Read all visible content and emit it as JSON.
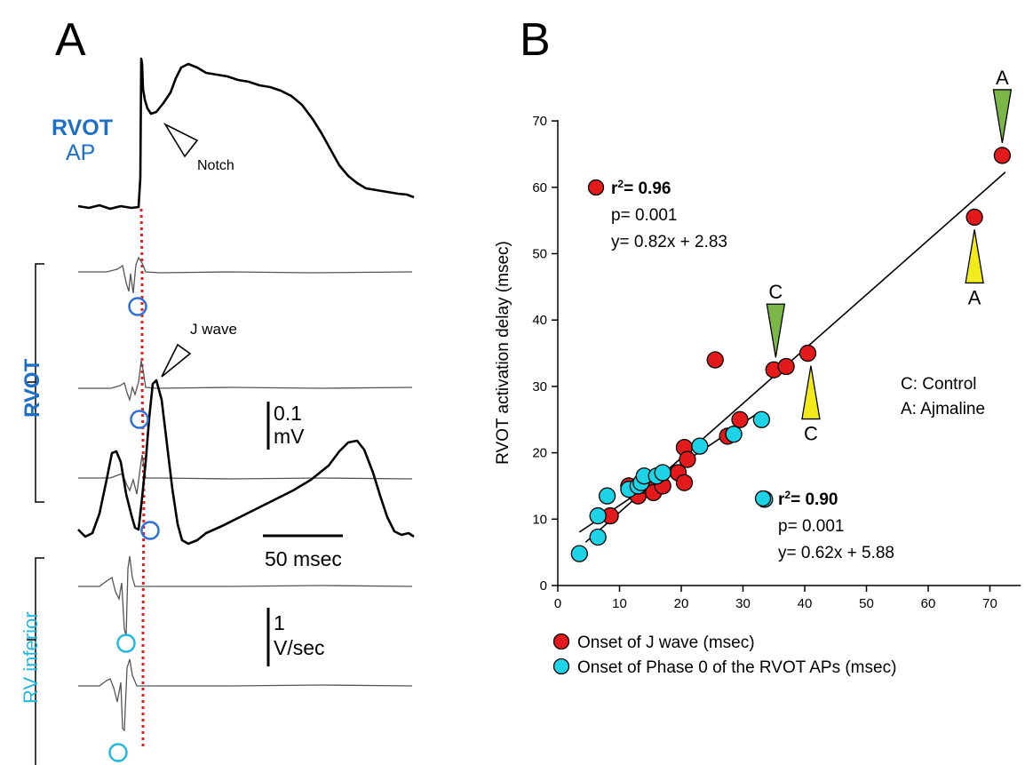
{
  "panel_a": {
    "letter": "A",
    "rvot_ap_label_1": "RVOT",
    "rvot_ap_label_2": "AP",
    "notch_label": "Notch",
    "j_wave_label": "J wave",
    "rvot_label": "RVOT",
    "rv_inferior_label": "RV inferior",
    "scale_mv_1": "0.1",
    "scale_mv_2": "mV",
    "scale_time": "50 msec",
    "scale_vsec_1": "1",
    "scale_vsec_2": "V/sec",
    "colors": {
      "rvot": "#1f6fc6",
      "rv_inferior": "#22b8e0",
      "marker_line": "#e02020"
    }
  },
  "chart_data": {
    "type": "scatter",
    "panel_letter": "B",
    "title": "",
    "xlabel": "",
    "ylabel": "RVOT activation delay (msec)",
    "xlim": [
      0,
      75
    ],
    "ylim": [
      0,
      70
    ],
    "xticks": [
      0,
      10,
      20,
      30,
      40,
      50,
      60,
      70
    ],
    "yticks": [
      0,
      10,
      20,
      30,
      40,
      50,
      60,
      70
    ],
    "grid": false,
    "legend_position": "bottom",
    "series": [
      {
        "name": "Onset of J wave (msec)",
        "color": "#e31a1c",
        "fit": {
          "slope": 0.82,
          "intercept": 2.83,
          "x_range": [
            4.5,
            72.5
          ]
        },
        "stats": {
          "r2_prefix": "r",
          "r2_value": "= 0.96",
          "p": "p= 0.001",
          "eq": "y= 0.82x + 2.83"
        },
        "points": [
          [
            8.5,
            10.5
          ],
          [
            11.5,
            15.0
          ],
          [
            12.5,
            14.0
          ],
          [
            13.0,
            13.5
          ],
          [
            13.5,
            15.5
          ],
          [
            14.5,
            15.0
          ],
          [
            15.5,
            14.0
          ],
          [
            17.0,
            15.0
          ],
          [
            19.5,
            17.0
          ],
          [
            20.5,
            15.5
          ],
          [
            20.5,
            20.8
          ],
          [
            21.0,
            19.0
          ],
          [
            25.5,
            34.0
          ],
          [
            27.5,
            22.5
          ],
          [
            29.5,
            25.0
          ],
          [
            35.0,
            32.5
          ],
          [
            37.0,
            33.0
          ],
          [
            40.5,
            35.0
          ],
          [
            67.5,
            55.5
          ],
          [
            72.0,
            64.8
          ]
        ]
      },
      {
        "name": "Onset of Phase 0 of the RVOT APs (msec)",
        "color": "#1ed3e6",
        "fit": {
          "slope": 0.62,
          "intercept": 5.88,
          "x_range": [
            3.5,
            32.5
          ]
        },
        "stats": {
          "r2_prefix": "r",
          "r2_value": "= 0.90",
          "p": "p= 0.001",
          "eq": "y= 0.62x + 5.88"
        },
        "points": [
          [
            3.5,
            4.8
          ],
          [
            6.5,
            7.3
          ],
          [
            6.5,
            10.5
          ],
          [
            8.0,
            13.5
          ],
          [
            11.5,
            14.5
          ],
          [
            13.0,
            15.0
          ],
          [
            13.5,
            15.5
          ],
          [
            14.0,
            16.5
          ],
          [
            16.0,
            16.5
          ],
          [
            17.0,
            17.0
          ],
          [
            23.0,
            21.0
          ],
          [
            28.5,
            22.8
          ],
          [
            33.0,
            25.0
          ],
          [
            33.5,
            13.0
          ]
        ]
      }
    ],
    "annotations": [
      {
        "label": "C",
        "x": 35.3,
        "y": 32.5,
        "side": "above",
        "color": "#7ab648"
      },
      {
        "label": "C",
        "x": 41.0,
        "y": 35.0,
        "side": "below",
        "color": "#f2ea1a"
      },
      {
        "label": "A",
        "x": 67.5,
        "y": 55.5,
        "side": "below",
        "color": "#f2ea1a"
      },
      {
        "label": "A",
        "x": 72.0,
        "y": 64.8,
        "side": "above",
        "color": "#7ab648"
      }
    ],
    "key_text": [
      "C: Control",
      "A: Ajmaline"
    ]
  }
}
